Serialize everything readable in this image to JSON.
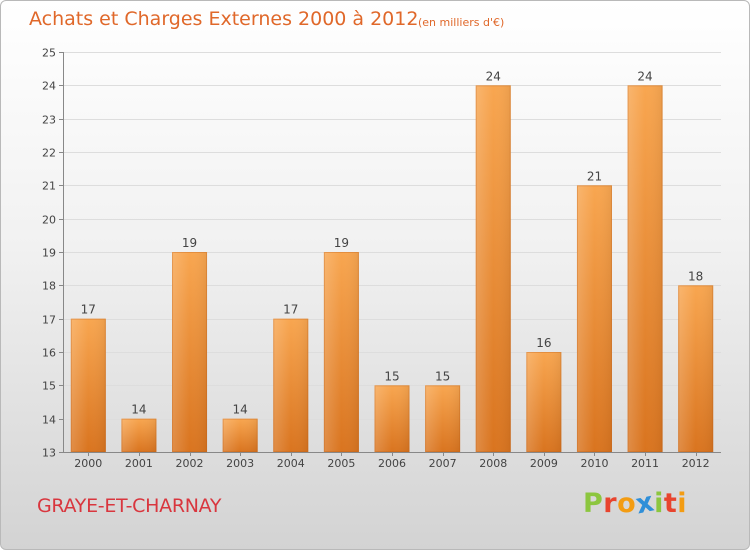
{
  "header": {
    "title": "Achats et Charges Externes 2000 à 2012",
    "subtitle": "(en milliers d'€)"
  },
  "footer": {
    "commune": "GRAYE-ET-CHARNAY",
    "brand_letters": [
      "P",
      "r",
      "o",
      "x",
      "i",
      "t",
      "i"
    ]
  },
  "colors": {
    "bar_light": "#f8a650",
    "bar_dark": "#d9741f",
    "title": "#e0682a",
    "commune": "#d9363e",
    "brand_letters": [
      "#8cc63f",
      "#e8442e",
      "#f39c12",
      "#2f8fd8",
      "#8cc63f",
      "#e8442e",
      "#f39c12"
    ]
  },
  "chart_data": {
    "type": "bar",
    "title": "Achats et Charges Externes 2000 à 2012",
    "subtitle": "(en milliers d'€)",
    "categories": [
      "2000",
      "2001",
      "2002",
      "2003",
      "2004",
      "2005",
      "2006",
      "2007",
      "2008",
      "2009",
      "2010",
      "2011",
      "2012"
    ],
    "values": [
      17,
      14,
      19,
      14,
      17,
      19,
      15,
      15,
      24,
      16,
      21,
      24,
      18
    ],
    "ylim": [
      13,
      25
    ],
    "yticks": [
      13,
      14,
      15,
      16,
      17,
      18,
      19,
      20,
      21,
      22,
      23,
      24,
      25
    ],
    "grid": true,
    "legend": "none"
  }
}
